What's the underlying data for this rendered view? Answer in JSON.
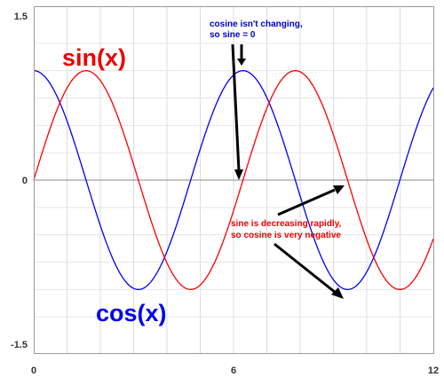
{
  "chart_data": {
    "type": "line",
    "xlim": [
      0,
      12
    ],
    "ylim": [
      -1.5,
      1.5
    ],
    "x_ticks": [
      "0",
      "6",
      "12"
    ],
    "y_ticks": [
      "1.5",
      "0",
      "-1.5"
    ],
    "grid": true,
    "series": [
      {
        "name": "sin(x)",
        "function": "sin",
        "color": "#ff0000",
        "x": [
          0,
          1.571,
          3.142,
          4.712,
          6.283,
          7.854,
          9.425,
          10.996,
          12
        ],
        "values": [
          0,
          1,
          0,
          -1,
          0,
          1,
          0,
          -1,
          -0.537
        ]
      },
      {
        "name": "cos(x)",
        "function": "cos",
        "color": "#0000ff",
        "x": [
          0,
          1.571,
          3.142,
          4.712,
          6.283,
          7.854,
          9.425,
          10.996,
          12
        ],
        "values": [
          1,
          0,
          -1,
          0,
          1,
          0,
          -1,
          0,
          0.844
        ]
      }
    ],
    "annotations": [
      {
        "line1": "cosine isn't changing,",
        "line2": "so sine = 0",
        "color": "#0000cc"
      },
      {
        "line1": "sine is decreasing rapidly,",
        "line2": "so cosine is very negative",
        "color": "#ee0000"
      }
    ]
  },
  "labels": {
    "sin": "sin(x)",
    "cos": "cos(x)"
  }
}
